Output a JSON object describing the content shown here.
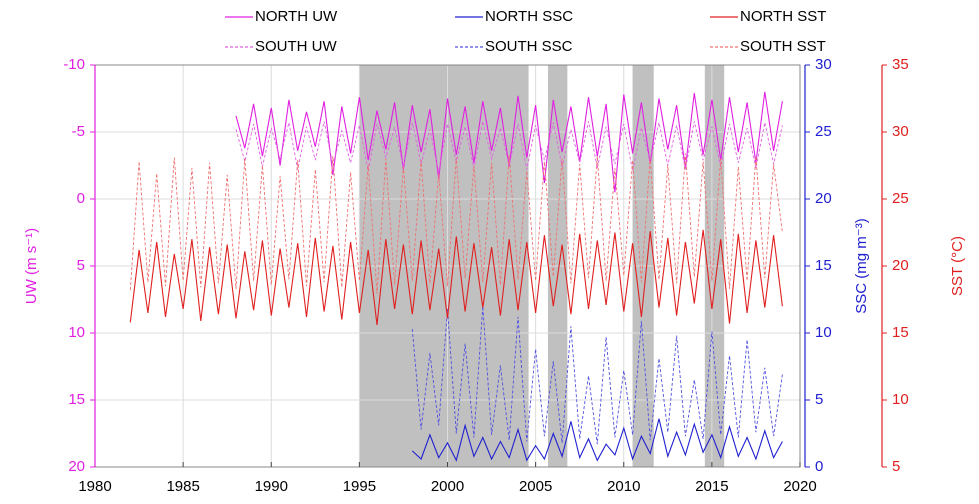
{
  "chart_data": {
    "type": "line",
    "x": [
      1982,
      1982.5,
      1983,
      1983.5,
      1984,
      1984.5,
      1985,
      1985.5,
      1986,
      1986.5,
      1987,
      1987.5,
      1988,
      1988.5,
      1989,
      1989.5,
      1990,
      1990.5,
      1991,
      1991.5,
      1992,
      1992.5,
      1993,
      1993.5,
      1994,
      1994.5,
      1995,
      1995.5,
      1996,
      1996.5,
      1997,
      1997.5,
      1998,
      1998.5,
      1999,
      1999.5,
      2000,
      2000.5,
      2001,
      2001.5,
      2002,
      2002.5,
      2003,
      2003.5,
      2004,
      2004.5,
      2005,
      2005.5,
      2006,
      2006.5,
      2007,
      2007.5,
      2008,
      2008.5,
      2009,
      2009.5,
      2010,
      2010.5,
      2011,
      2011.5,
      2012,
      2012.5,
      2013,
      2013.5,
      2014,
      2014.5,
      2015,
      2015.5,
      2016,
      2016.5,
      2017,
      2017.5,
      2018,
      2018.5,
      2019
    ],
    "xlim": [
      1980,
      2020
    ],
    "xticks": [
      1980,
      1985,
      1990,
      1995,
      2000,
      2005,
      2010,
      2015,
      2020
    ],
    "y_label": "UW (m s⁻¹)",
    "ylim": [
      -10,
      20
    ],
    "y_inverted": true,
    "yticks": [
      -10,
      -5,
      0,
      5,
      10,
      15,
      20
    ],
    "y2_label": "SSC (mg m⁻³)",
    "y2lim": [
      0,
      30
    ],
    "y2ticks": [
      0,
      5,
      10,
      15,
      20,
      25,
      30
    ],
    "y3_label": "SST (°C)",
    "y3lim": [
      5,
      35
    ],
    "y3ticks": [
      5,
      10,
      15,
      20,
      25,
      30,
      35
    ],
    "grid": true,
    "shaded_regions": [
      [
        1995,
        2004.6
      ],
      [
        2005.7,
        2006.8
      ],
      [
        2010.5,
        2011.7
      ],
      [
        2014.6,
        2015.7
      ]
    ],
    "series": [
      {
        "name": "NORTH UW",
        "color": "#e020e0",
        "dashed": false,
        "axis": "y",
        "values": [
          null,
          null,
          null,
          null,
          null,
          null,
          null,
          null,
          null,
          null,
          null,
          null,
          -6.2,
          -3.8,
          -7.1,
          -3.2,
          -6.8,
          -2.5,
          -7.4,
          -3.6,
          -6.5,
          -3.9,
          -7.3,
          -1.8,
          -6.9,
          -3.4,
          -7.6,
          -2.9,
          -6.6,
          -3.7,
          -7.2,
          -2.2,
          -7.0,
          -3.5,
          -6.7,
          -1.5,
          -7.5,
          -3.3,
          -6.9,
          -2.7,
          -7.3,
          -3.6,
          -6.8,
          -2.4,
          -7.7,
          -3.1,
          -7.0,
          -1.2,
          -7.4,
          -3.5,
          -6.9,
          -2.8,
          -7.6,
          -3.2,
          -7.1,
          -0.5,
          -7.8,
          -3.4,
          -7.2,
          -2.6,
          -7.5,
          -3.7,
          -7.0,
          -2.3,
          -7.9,
          -3.3,
          -7.4,
          -2.9,
          -7.6,
          -3.5,
          -7.2,
          -2.7,
          -8.0,
          -3.6,
          -7.3
        ]
      },
      {
        "name": "SOUTH UW",
        "color": "#e060e0",
        "dashed": true,
        "axis": "y",
        "values": [
          null,
          null,
          null,
          null,
          null,
          null,
          null,
          null,
          null,
          null,
          null,
          null,
          -5.2,
          -2.8,
          -5.6,
          -2.4,
          -5.3,
          -3.0,
          -5.7,
          -2.2,
          -5.4,
          -2.9,
          -5.8,
          -2.5,
          -5.1,
          -2.7,
          -5.5,
          -2.1,
          -5.6,
          -3.1,
          -5.3,
          -2.4,
          -5.7,
          -2.6,
          -5.2,
          -2.0,
          -5.6,
          -2.8,
          -5.4,
          -2.3,
          -5.8,
          -3.0,
          -5.3,
          -2.5,
          -5.6,
          -2.2,
          -5.5,
          -2.9,
          -5.7,
          -2.4,
          -5.2,
          -2.7,
          -5.8,
          -2.3,
          -5.4,
          -2.6,
          -5.6,
          -2.1,
          -5.3,
          -2.8,
          -5.7,
          -2.5,
          -5.5,
          -2.2,
          -5.8,
          -2.9,
          -5.4,
          -2.4,
          -5.6,
          -2.7,
          -5.3,
          -2.3,
          -5.7,
          -2.6,
          -5.5
        ]
      },
      {
        "name": "NORTH SSC",
        "color": "#2020d0",
        "dashed": false,
        "axis": "y2",
        "values": [
          null,
          null,
          null,
          null,
          null,
          null,
          null,
          null,
          null,
          null,
          null,
          null,
          null,
          null,
          null,
          null,
          null,
          null,
          null,
          null,
          null,
          null,
          null,
          null,
          null,
          null,
          null,
          null,
          null,
          null,
          null,
          null,
          1.2,
          0.6,
          2.4,
          0.7,
          1.8,
          0.5,
          3.1,
          0.8,
          2.2,
          0.6,
          1.9,
          0.7,
          2.8,
          0.5,
          1.6,
          0.6,
          2.5,
          0.8,
          3.4,
          0.7,
          2.1,
          0.5,
          1.7,
          0.9,
          2.9,
          0.6,
          2.3,
          1.0,
          3.6,
          0.8,
          2.6,
          0.9,
          3.2,
          1.1,
          2.4,
          0.7,
          3.0,
          0.8,
          2.2,
          0.6,
          2.7,
          0.7,
          1.9
        ]
      },
      {
        "name": "SOUTH SSC",
        "color": "#5050e0",
        "dashed": true,
        "axis": "y2",
        "values": [
          null,
          null,
          null,
          null,
          null,
          null,
          null,
          null,
          null,
          null,
          null,
          null,
          null,
          null,
          null,
          null,
          null,
          null,
          null,
          null,
          null,
          null,
          null,
          null,
          null,
          null,
          null,
          null,
          null,
          null,
          null,
          null,
          10.3,
          2.8,
          8.5,
          3.1,
          11.8,
          2.5,
          9.2,
          2.2,
          12.0,
          2.4,
          7.6,
          2.0,
          11.2,
          1.9,
          8.8,
          2.3,
          7.9,
          1.8,
          10.5,
          2.1,
          6.8,
          1.7,
          9.7,
          2.2,
          7.2,
          2.4,
          10.9,
          2.0,
          8.1,
          2.6,
          9.8,
          2.3,
          6.5,
          2.1,
          10.1,
          2.4,
          8.3,
          2.2,
          9.5,
          2.6,
          7.4,
          2.3,
          6.9
        ]
      },
      {
        "name": "NORTH SST",
        "color": "#e02020",
        "dashed": false,
        "axis": "y3",
        "values": [
          15.8,
          21.2,
          16.5,
          21.8,
          16.2,
          20.9,
          16.8,
          22.0,
          15.9,
          21.4,
          16.4,
          21.6,
          16.1,
          21.1,
          16.7,
          21.9,
          16.3,
          21.3,
          16.9,
          21.7,
          16.2,
          22.1,
          16.6,
          21.5,
          16.0,
          21.8,
          16.5,
          21.2,
          15.6,
          22.0,
          16.8,
          21.6,
          16.4,
          21.9,
          16.7,
          21.3,
          16.1,
          22.2,
          16.6,
          21.7,
          16.9,
          21.4,
          16.3,
          22.0,
          16.7,
          21.8,
          16.5,
          22.3,
          17.0,
          21.6,
          16.4,
          22.4,
          16.8,
          21.9,
          17.1,
          22.5,
          16.6,
          21.7,
          16.2,
          22.6,
          16.9,
          22.1,
          16.3,
          21.8,
          17.2,
          22.7,
          16.8,
          22.0,
          15.7,
          22.4,
          16.5,
          21.9,
          16.9,
          22.3,
          17.0
        ]
      },
      {
        "name": "SOUTH SST",
        "color": "#f07070",
        "dashed": true,
        "axis": "y3",
        "values": [
          18.2,
          27.8,
          18.8,
          26.9,
          18.5,
          28.1,
          18.9,
          27.3,
          18.4,
          27.7,
          18.7,
          26.8,
          18.3,
          28.0,
          18.9,
          27.5,
          18.6,
          26.7,
          19.0,
          27.9,
          18.5,
          27.2,
          18.8,
          28.2,
          18.4,
          27.0,
          18.9,
          27.6,
          17.9,
          28.0,
          18.6,
          27.4,
          18.9,
          27.9,
          18.7,
          26.9,
          18.5,
          28.1,
          19.1,
          27.5,
          18.8,
          27.7,
          18.6,
          28.3,
          19.0,
          27.1,
          18.9,
          27.8,
          19.2,
          28.0,
          18.7,
          27.6,
          19.1,
          28.2,
          18.9,
          27.3,
          19.3,
          27.9,
          18.8,
          28.1,
          19.0,
          27.5,
          18.7,
          28.4,
          19.2,
          27.8,
          18.9,
          28.0,
          18.3,
          27.4,
          18.9,
          28.2,
          19.1,
          27.6,
          22.5
        ]
      }
    ]
  }
}
